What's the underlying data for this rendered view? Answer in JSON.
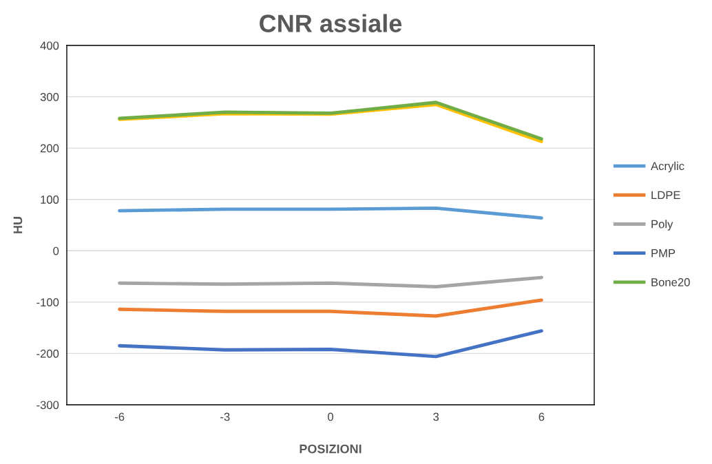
{
  "chart_data": {
    "type": "line",
    "title": "CNR assiale",
    "xlabel": "POSIZIONI",
    "ylabel": "HU",
    "categories": [
      "-6",
      "-3",
      "0",
      "3",
      "6"
    ],
    "series": [
      {
        "name": "Acrylic",
        "color": "#5b9bd5",
        "values": [
          78,
          81,
          81,
          83,
          64
        ]
      },
      {
        "name": "LDPE",
        "color": "#ed7d31",
        "values": [
          -114,
          -118,
          -118,
          -127,
          -96
        ]
      },
      {
        "name": "Poly",
        "color": "#a5a5a5",
        "values": [
          -63,
          -65,
          -63,
          -70,
          -52
        ]
      },
      {
        "color": "#ffc000",
        "values": [
          256,
          267,
          266,
          285,
          213
        ]
      },
      {
        "name": "PMP",
        "color": "#4472c4",
        "values": [
          -185,
          -193,
          -192,
          -206,
          -156
        ]
      },
      {
        "name": "Bone20",
        "color": "#70ad47",
        "values": [
          258,
          270,
          268,
          289,
          218
        ]
      }
    ],
    "ylim": [
      -300,
      400
    ],
    "yticks": [
      -300,
      -200,
      -100,
      0,
      100,
      200,
      300,
      400
    ],
    "grid": "y",
    "legend": "right",
    "marker": "none",
    "line_style": "solid"
  }
}
